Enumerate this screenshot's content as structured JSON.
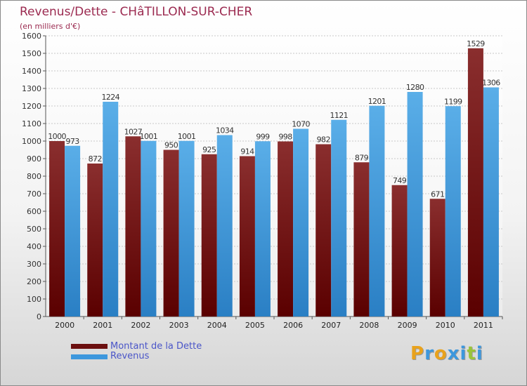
{
  "title": "Revenus/Dette - CHâTILLON-SUR-CHER",
  "subtitle": "(en milliers d'€)",
  "legend": [
    {
      "label": "Montant de la Dette",
      "color": "#6b0f0f"
    },
    {
      "label": "Revenus",
      "color": "#3d97dd"
    }
  ],
  "logo": {
    "text": "Proxiti",
    "letters": [
      {
        "ch": "P",
        "color": "#e9a21c"
      },
      {
        "ch": "r",
        "color": "#3d97dd"
      },
      {
        "ch": "o",
        "color": "#e9a21c"
      },
      {
        "ch": "x",
        "color": "#3d97dd"
      },
      {
        "ch": "i",
        "color": "#3d97dd"
      },
      {
        "ch": "t",
        "color": "#9ac43a"
      },
      {
        "ch": "i",
        "color": "#3d97dd"
      }
    ]
  },
  "chart_data": {
    "type": "bar",
    "title": "Revenus/Dette - CHâTILLON-SUR-CHER",
    "ylabel": "(en milliers d'€)",
    "categories": [
      "2000",
      "2001",
      "2002",
      "2003",
      "2004",
      "2005",
      "2006",
      "2007",
      "2008",
      "2009",
      "2010",
      "2011"
    ],
    "series": [
      {
        "name": "Montant de la Dette",
        "color": "#6b0f0f",
        "values": [
          1000,
          872,
          1027,
          950,
          925,
          914,
          998,
          982,
          879,
          749,
          671,
          1529
        ]
      },
      {
        "name": "Revenus",
        "color": "#3d97dd",
        "values": [
          973,
          1224,
          1001,
          1001,
          1034,
          999,
          1070,
          1121,
          1201,
          1280,
          1199,
          1306
        ]
      }
    ],
    "ylim": [
      0,
      1600
    ],
    "yticks": [
      0,
      100,
      200,
      300,
      400,
      500,
      600,
      700,
      800,
      900,
      1000,
      1100,
      1200,
      1300,
      1400,
      1500,
      1600
    ],
    "grid": true,
    "legend_position": "bottom-left"
  }
}
